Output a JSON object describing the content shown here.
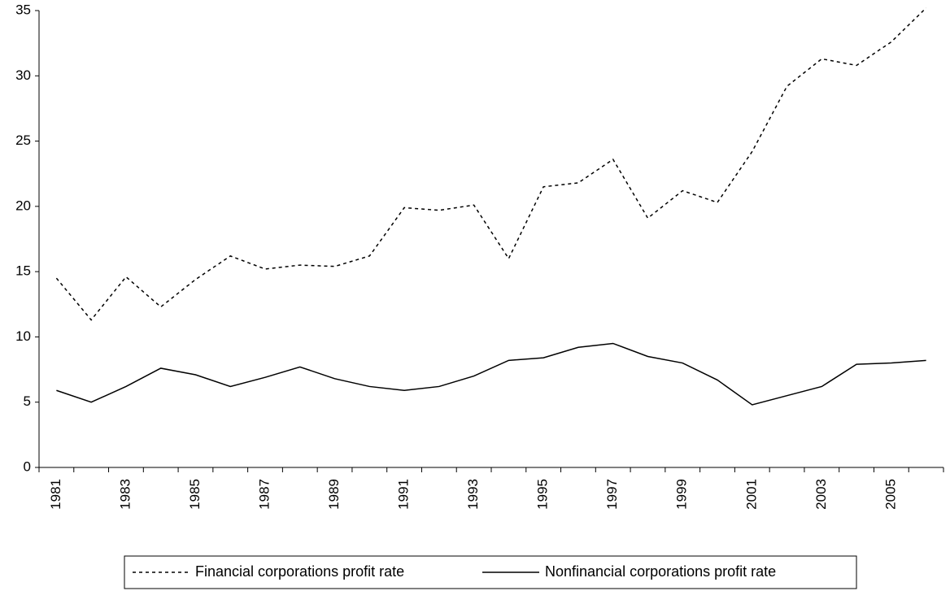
{
  "chart_data": {
    "type": "line",
    "categories": [
      "1981",
      null,
      "1983",
      null,
      "1985",
      null,
      "1987",
      null,
      "1989",
      null,
      "1991",
      null,
      "1993",
      null,
      "1995",
      null,
      "1997",
      null,
      "1999",
      null,
      "2001",
      null,
      "2003",
      null,
      "2005",
      null
    ],
    "series": [
      {
        "name": "Financial corporations profit rate",
        "color": "#000000",
        "line_style": "dotted",
        "values": [
          14.5,
          11.3,
          14.6,
          12.3,
          14.4,
          16.2,
          15.2,
          15.5,
          15.4,
          16.2,
          19.9,
          19.7,
          20.1,
          16.0,
          21.5,
          21.8,
          23.6,
          19.1,
          21.2,
          20.3,
          24.2,
          29.2,
          31.3,
          30.8,
          32.6,
          35.2
        ]
      },
      {
        "name": "Nonfinancial corporations profit rate",
        "color": "#000000",
        "line_style": "solid",
        "values": [
          5.9,
          5.0,
          6.2,
          7.6,
          7.1,
          6.2,
          6.9,
          7.7,
          6.8,
          6.2,
          5.9,
          6.2,
          7.0,
          8.2,
          8.4,
          9.2,
          9.5,
          8.5,
          8.0,
          6.7,
          4.8,
          5.5,
          6.2,
          7.9,
          8.0,
          8.2
        ]
      }
    ],
    "ylim": [
      0,
      35
    ],
    "yticks": [
      0,
      5,
      10,
      15,
      20,
      25,
      30,
      35
    ],
    "grid": false,
    "legend": "bottom"
  }
}
